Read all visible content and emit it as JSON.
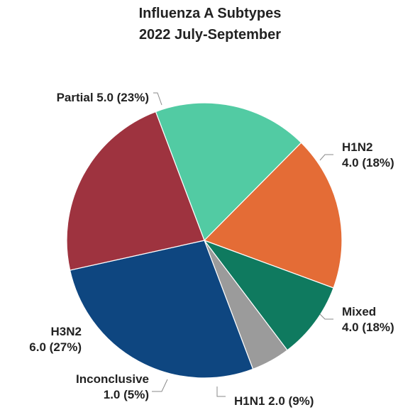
{
  "chart_data": {
    "type": "pie",
    "title": "Influenza A Subtypes",
    "subtitle": "2022 July-September",
    "slices": [
      {
        "label": "H1N2",
        "value": 4.0,
        "percent": "18%",
        "color": "#52CBA3",
        "label_lines": [
          "H1N2",
          "4.0 (18%)"
        ]
      },
      {
        "label": "Mixed",
        "value": 4.0,
        "percent": "18%",
        "color": "#E46C36",
        "label_lines": [
          "Mixed",
          "4.0 (18%)"
        ]
      },
      {
        "label": "H1N1",
        "value": 2.0,
        "percent": "9%",
        "color": "#0F7A5F",
        "label_lines": [
          "H1N1 2.0 (9%)"
        ]
      },
      {
        "label": "Inconclusive",
        "value": 1.0,
        "percent": "5%",
        "color": "#9B9B9B",
        "label_lines": [
          "Inconclusive",
          "1.0 (5%)"
        ]
      },
      {
        "label": "H3N2",
        "value": 6.0,
        "percent": "27%",
        "color": "#0E4680",
        "label_lines": [
          "H3N2",
          "6.0 (27%)"
        ]
      },
      {
        "label": "Partial",
        "value": 5.0,
        "percent": "23%",
        "color": "#9E333F",
        "label_lines": [
          "Partial 5.0 (23%)"
        ]
      }
    ]
  }
}
